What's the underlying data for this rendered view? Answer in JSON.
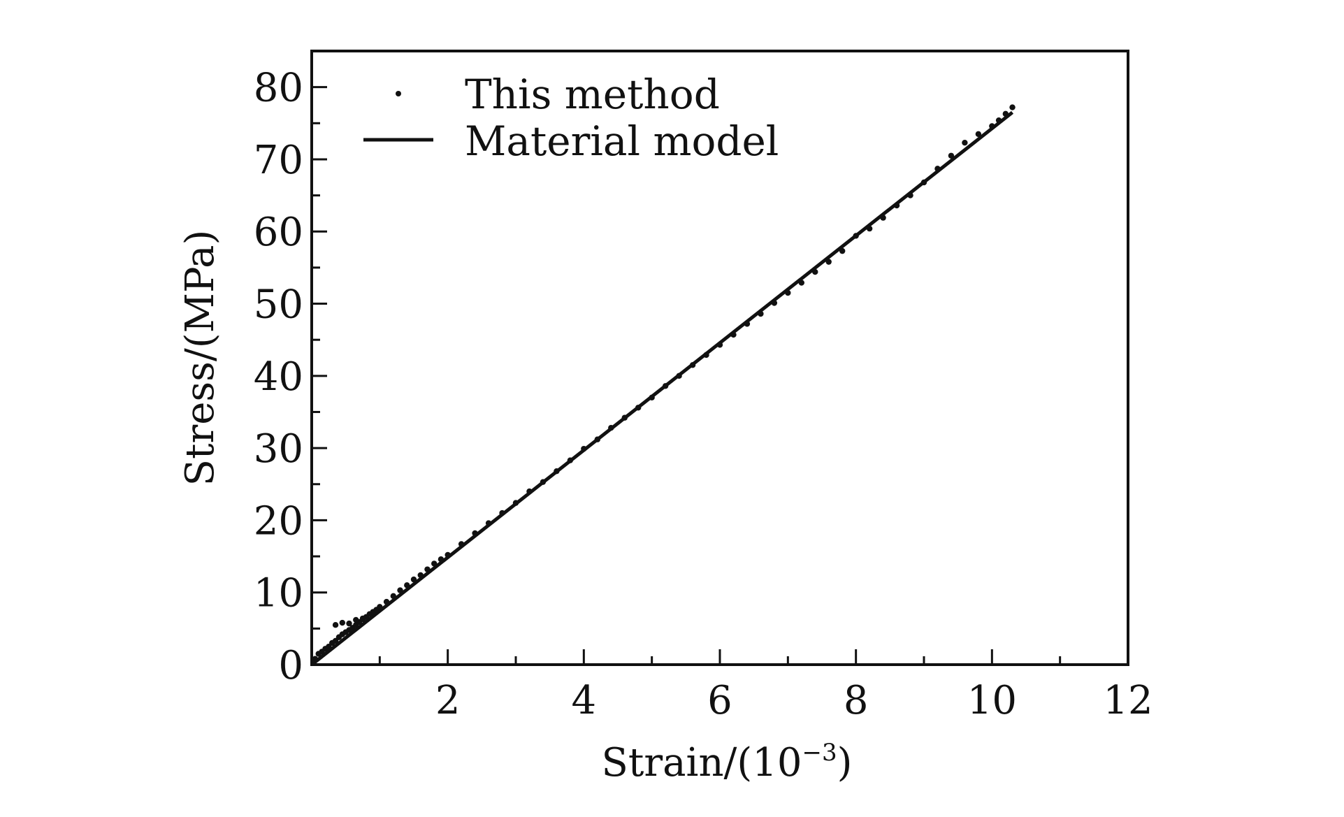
{
  "chart_data": {
    "type": "scatter",
    "xlabel": "Strain/(10",
    "xlabel_sup": "−3",
    "xlabel_close": ")",
    "ylabel": "Stress/(MPa)",
    "xlim": [
      0,
      12
    ],
    "ylim": [
      0,
      85
    ],
    "x_ticks": [
      2,
      4,
      6,
      8,
      10,
      12
    ],
    "x_tick_labels": [
      "2",
      "4",
      "6",
      "8",
      "10",
      "12"
    ],
    "y_ticks": [
      0,
      10,
      20,
      30,
      40,
      50,
      60,
      70,
      80
    ],
    "y_tick_labels": [
      "0",
      "10",
      "20",
      "30",
      "40",
      "50",
      "60",
      "70",
      "80"
    ],
    "x_minor_step": 1,
    "y_minor_step": 5,
    "grid": false,
    "legend_position": "top-left",
    "series": [
      {
        "name": "This method",
        "kind": "scatter",
        "color": "#111111",
        "x": [
          0.05,
          0.1,
          0.15,
          0.2,
          0.25,
          0.3,
          0.35,
          0.4,
          0.45,
          0.5,
          0.55,
          0.6,
          0.65,
          0.7,
          0.75,
          0.8,
          0.85,
          0.9,
          0.95,
          1.0,
          1.1,
          1.2,
          1.3,
          1.4,
          1.5,
          1.6,
          1.7,
          1.8,
          1.9,
          2.0,
          2.2,
          2.4,
          2.6,
          2.8,
          3.0,
          3.2,
          3.4,
          3.6,
          3.8,
          4.0,
          4.2,
          4.4,
          4.6,
          4.8,
          5.0,
          5.2,
          5.4,
          5.6,
          5.8,
          6.0,
          6.2,
          6.4,
          6.6,
          6.8,
          7.0,
          7.2,
          7.4,
          7.6,
          7.8,
          8.0,
          8.2,
          8.4,
          8.6,
          8.8,
          9.0,
          9.2,
          9.4,
          9.6,
          9.8,
          10.0,
          10.1,
          10.2,
          10.3,
          0.35,
          0.45,
          0.55,
          0.65,
          0.75
        ],
        "y": [
          0.8,
          1.5,
          1.8,
          2.2,
          2.5,
          3.0,
          3.3,
          3.8,
          4.2,
          4.5,
          4.8,
          5.1,
          5.5,
          5.9,
          6.3,
          6.6,
          7.0,
          7.3,
          7.6,
          8.0,
          8.7,
          9.5,
          10.3,
          11.0,
          11.8,
          12.4,
          13.2,
          14.0,
          14.6,
          15.2,
          16.7,
          18.2,
          19.6,
          21.0,
          22.4,
          24.0,
          25.3,
          26.8,
          28.3,
          29.9,
          31.2,
          32.8,
          34.2,
          35.6,
          37.0,
          38.6,
          40.0,
          41.5,
          42.9,
          44.3,
          45.7,
          47.2,
          48.6,
          50.1,
          51.5,
          52.9,
          54.4,
          55.8,
          57.3,
          59.4,
          60.4,
          61.9,
          63.6,
          65.0,
          66.8,
          68.7,
          70.5,
          72.3,
          73.5,
          74.6,
          75.4,
          76.3,
          77.2,
          5.5,
          5.8,
          5.7,
          6.2,
          6.4
        ]
      },
      {
        "name": "Material model",
        "kind": "line",
        "color": "#111111",
        "x": [
          0,
          10.3
        ],
        "y": [
          0,
          76.5
        ]
      }
    ]
  }
}
